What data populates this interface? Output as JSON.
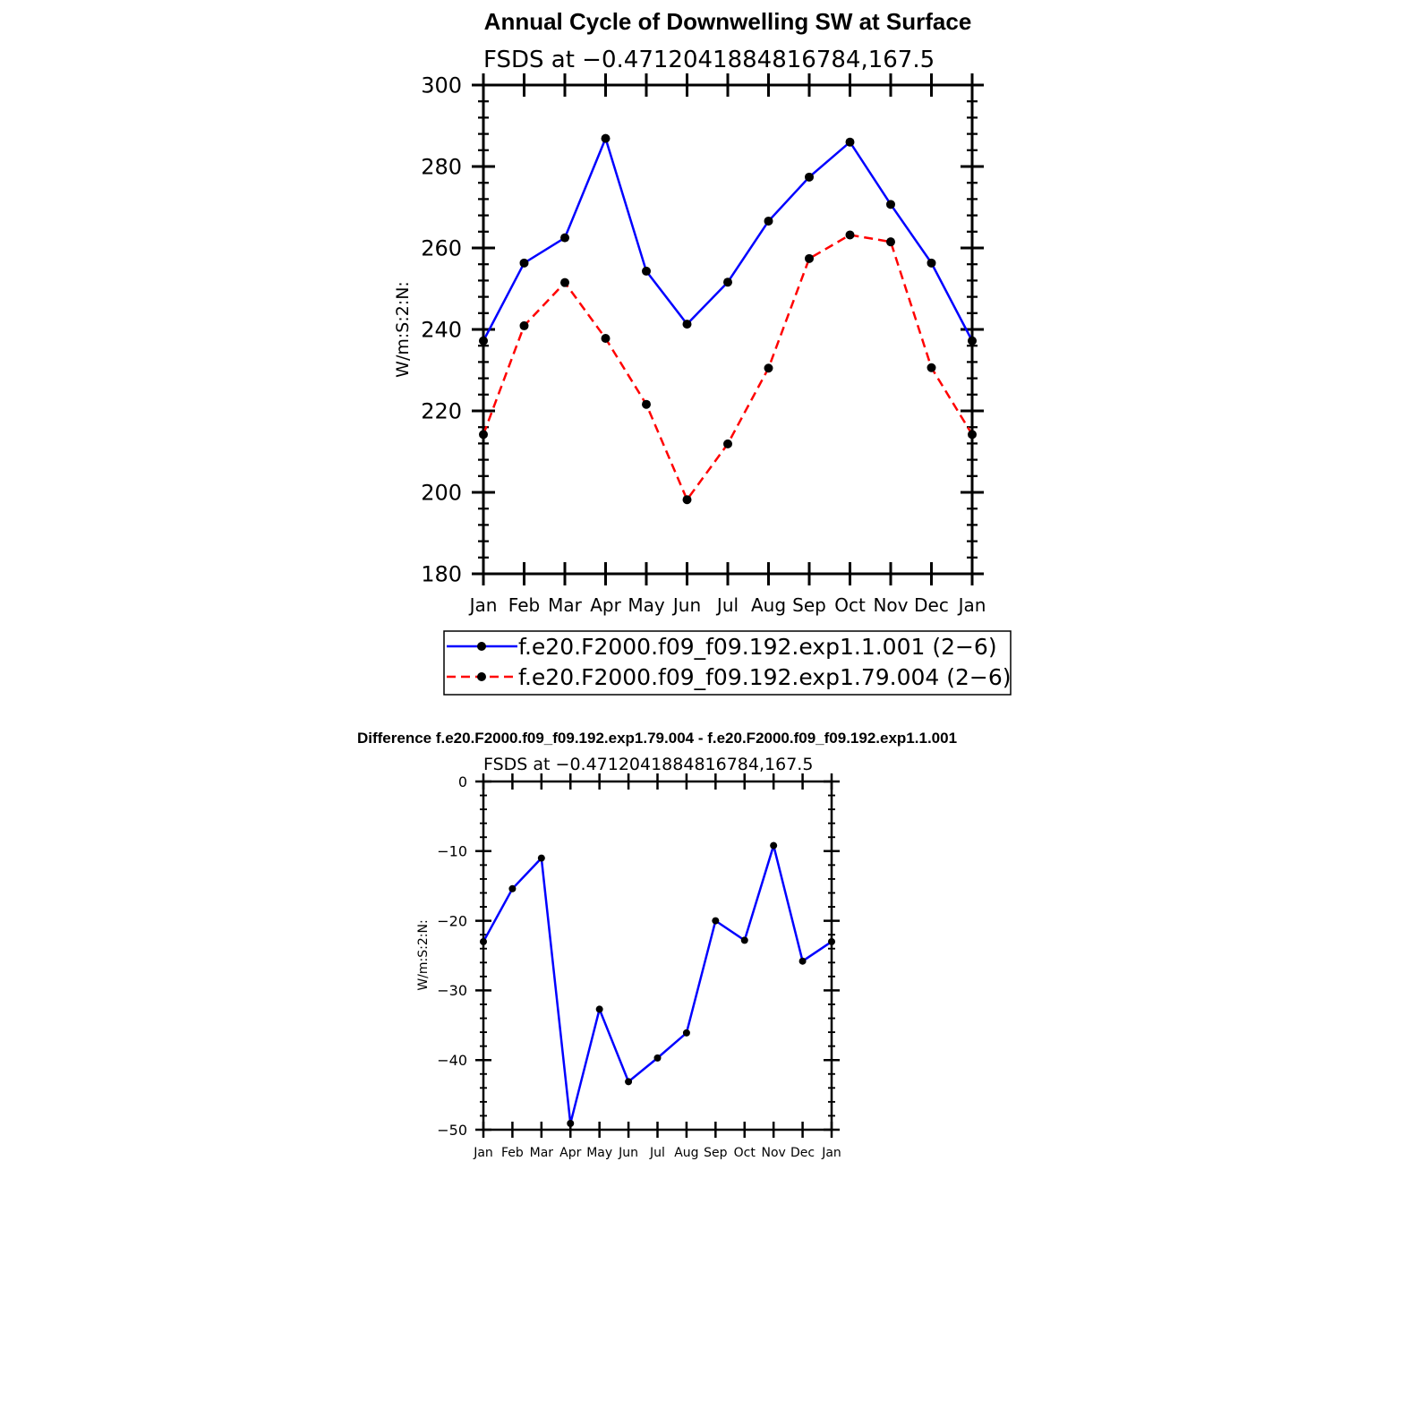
{
  "chart_data": [
    {
      "type": "line",
      "title": "Annual Cycle of Downwelling SW at Surface",
      "subtitle": "FSDS at −0.4712041884816784,167.5",
      "ylabel": "W/m:S:2:N:",
      "xlabel": "",
      "categories": [
        "Jan",
        "Feb",
        "Mar",
        "Apr",
        "May",
        "Jun",
        "Jul",
        "Aug",
        "Sep",
        "Oct",
        "Nov",
        "Dec",
        "Jan"
      ],
      "ylim": [
        180,
        300
      ],
      "yticks": [
        "180",
        "200",
        "220",
        "240",
        "260",
        "280",
        "300"
      ],
      "legend_position": "bottom",
      "grid": false,
      "series": [
        {
          "name": "f.e20.F2000.f09_f09.192.exp1.1.001 (2−6)",
          "color": "#0000ff",
          "dash": "solid",
          "values": [
            237.2,
            256.3,
            262.5,
            286.9,
            254.3,
            241.3,
            251.6,
            266.6,
            277.4,
            286.0,
            270.7,
            256.3,
            237.2
          ]
        },
        {
          "name": "f.e20.F2000.f09_f09.192.exp1.79.004 (2−6)",
          "color": "#ff0000",
          "dash": "dashed",
          "values": [
            214.2,
            240.9,
            251.5,
            237.8,
            221.6,
            198.2,
            211.9,
            230.5,
            257.4,
            263.2,
            261.5,
            230.6,
            214.2
          ]
        }
      ]
    },
    {
      "type": "line",
      "title": "Difference f.e20.F2000.f09_f09.192.exp1.79.004 - f.e20.F2000.f09_f09.192.exp1.1.001",
      "subtitle": "FSDS at −0.4712041884816784,167.5",
      "ylabel": "W/m:S:2:N:",
      "xlabel": "",
      "categories": [
        "Jan",
        "Feb",
        "Mar",
        "Apr",
        "May",
        "Jun",
        "Jul",
        "Aug",
        "Sep",
        "Oct",
        "Nov",
        "Dec",
        "Jan"
      ],
      "ylim": [
        -50,
        0
      ],
      "yticks": [
        "0",
        "−10",
        "−20",
        "−30",
        "−40",
        "−50"
      ],
      "grid": false,
      "series": [
        {
          "color": "#0000ff",
          "dash": "solid",
          "values": [
            -23.0,
            -15.4,
            -11.0,
            -49.1,
            -32.7,
            -43.1,
            -39.7,
            -36.1,
            -20.0,
            -22.8,
            -9.2,
            -25.8,
            -23.0
          ]
        }
      ]
    }
  ]
}
